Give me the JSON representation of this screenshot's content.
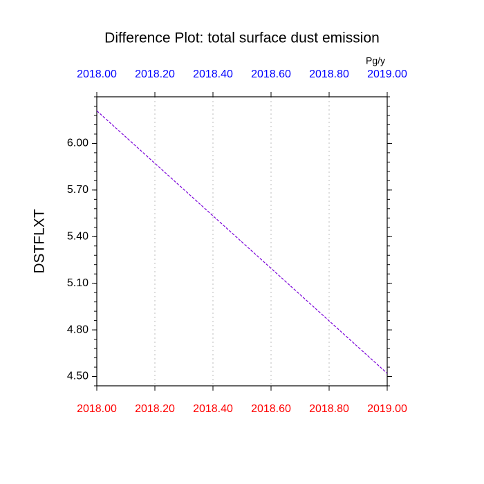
{
  "chart_data": {
    "type": "line",
    "title": "Difference Plot: total surface dust emission",
    "units": "Pg/y",
    "ylabel": "DSTFLXT",
    "x": [
      2018,
      2019
    ],
    "series": [
      {
        "name": "DSTFLXT",
        "color": "#7a00d9",
        "values": [
          6.21,
          4.52
        ]
      }
    ],
    "xlim": [
      2018,
      2019
    ],
    "xticks": [
      {
        "value": 2018,
        "label": "2018.00"
      },
      {
        "value": 2018.2,
        "label": "2018.20"
      },
      {
        "value": 2018.4,
        "label": "2018.40"
      },
      {
        "value": 2018.6,
        "label": "2018.60"
      },
      {
        "value": 2018.8,
        "label": "2018.80"
      },
      {
        "value": 2019,
        "label": "2019.00"
      }
    ],
    "ylim": [
      4.44,
      6.3
    ],
    "yticks": [
      {
        "value": 4.5,
        "label": "4.50"
      },
      {
        "value": 4.8,
        "label": "4.80"
      },
      {
        "value": 5.1,
        "label": "5.10"
      },
      {
        "value": 5.4,
        "label": "5.40"
      },
      {
        "value": 5.7,
        "label": "5.70"
      },
      {
        "value": 6,
        "label": "6.00"
      }
    ],
    "grid": true,
    "top_tick_color": "#0000ff",
    "bottom_tick_color": "#ff0000"
  }
}
